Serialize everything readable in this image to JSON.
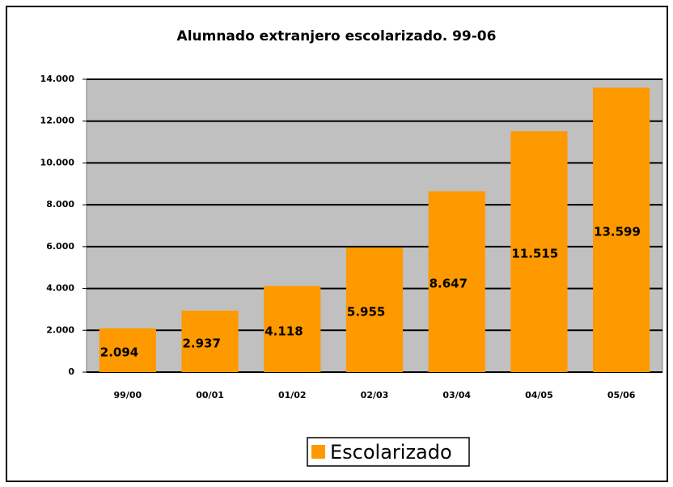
{
  "chart_data": {
    "type": "bar",
    "title": "Alumnado extranjero escolarizado. 99-06",
    "categories": [
      "99/00",
      "00/01",
      "01/02",
      "02/03",
      "03/04",
      "04/05",
      "05/06"
    ],
    "series": [
      {
        "name": "Escolarizado",
        "color": "#ff9900",
        "values": [
          2094,
          2937,
          4118,
          5955,
          8647,
          11515,
          13599
        ],
        "value_labels": [
          "2.094",
          "2.937",
          "4.118",
          "5.955",
          "8.647",
          "11.515",
          "13.599"
        ]
      }
    ],
    "ylim": [
      0,
      14000
    ],
    "yticks": [
      0,
      {
        "value": 2000,
        "label": "2.000"
      },
      {
        "value": 4000,
        "label": "4.000"
      },
      {
        "value": 6000,
        "label": "6.000"
      },
      {
        "value": 8000,
        "label": "8.000"
      },
      {
        "value": 10000,
        "label": "10.000"
      },
      {
        "value": 12000,
        "label": "12.000"
      },
      {
        "value": 14000,
        "label": "14.000"
      }
    ],
    "grid": true,
    "plot_background": "#c0c0c0"
  }
}
